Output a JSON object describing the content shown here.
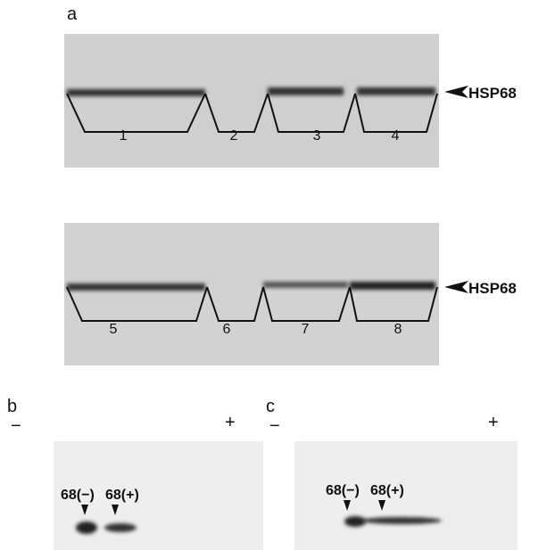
{
  "panels": [
    {
      "label": "a",
      "gels": [
        {
          "marker": "HSP68",
          "lanes": [
            "1",
            "2",
            "3",
            "4"
          ]
        },
        {
          "marker": "HSP68",
          "lanes": [
            "5",
            "6",
            "7",
            "8"
          ]
        }
      ]
    },
    {
      "label": "b",
      "minus": "−",
      "plus": "+",
      "spots": [
        "68(−)",
        "68(+)"
      ]
    },
    {
      "label": "c",
      "minus": "−",
      "plus": "+",
      "spots": [
        "68(−)",
        "68(+)"
      ]
    }
  ]
}
